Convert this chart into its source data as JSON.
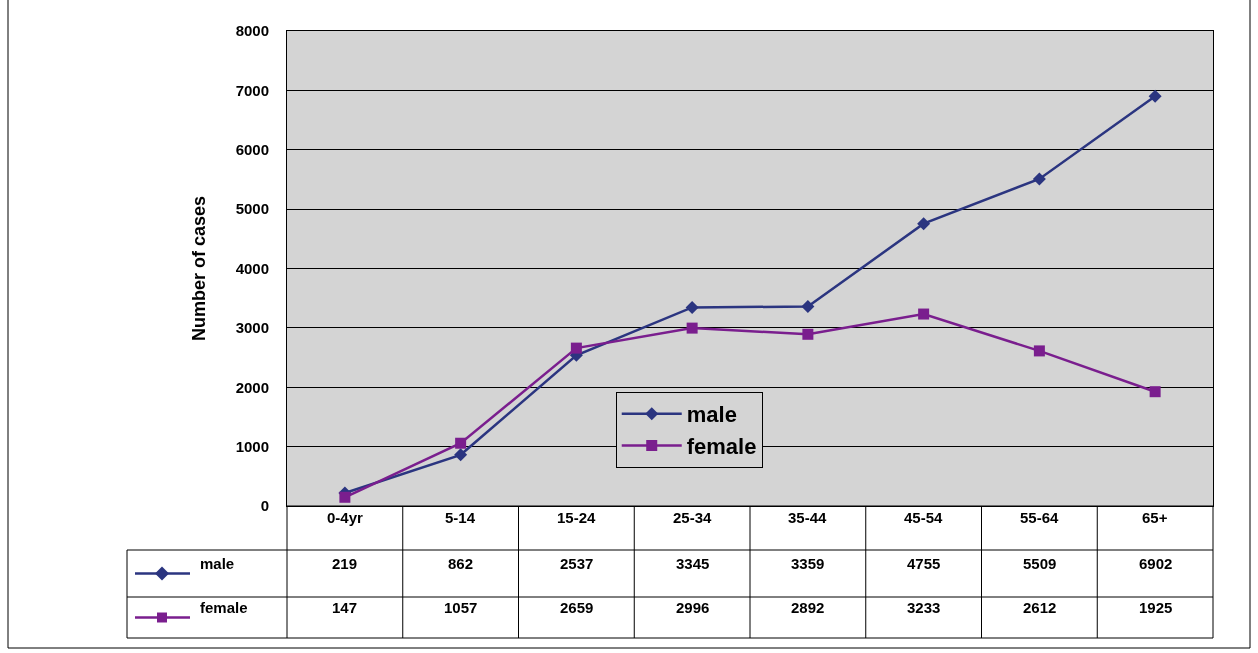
{
  "chart_data": {
    "type": "line",
    "ylabel": "Number of cases",
    "categories": [
      "0-4yr",
      "5-14",
      "15-24",
      "25-34",
      "35-44",
      "45-54",
      "55-64",
      "65+"
    ],
    "series": [
      {
        "name": "male",
        "color": "#2b3580",
        "marker": "diamond",
        "values": [
          219,
          862,
          2537,
          3345,
          3359,
          4755,
          5509,
          6902
        ]
      },
      {
        "name": "female",
        "color": "#7a1e8e",
        "marker": "square",
        "values": [
          147,
          1057,
          2659,
          2996,
          2892,
          3233,
          2612,
          1925
        ]
      }
    ],
    "ylim": [
      0,
      8000
    ],
    "yticks": [
      0,
      1000,
      2000,
      3000,
      4000,
      5000,
      6000,
      7000,
      8000
    ],
    "grid": "y",
    "legend": "bottom",
    "data_labels": true
  }
}
